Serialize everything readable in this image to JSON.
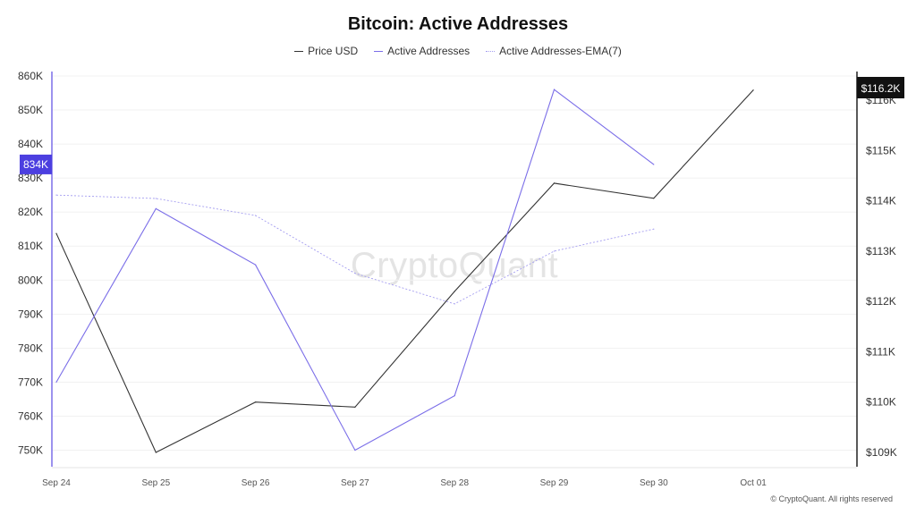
{
  "title": "Bitcoin: Active Addresses",
  "legend": [
    {
      "name": "Price USD",
      "color": "#333333",
      "style": "solid"
    },
    {
      "name": "Active Addresses",
      "color": "#7b6ee8",
      "style": "solid"
    },
    {
      "name": "Active Addresses-EMA(7)",
      "color": "#a59ef0",
      "style": "dotted"
    }
  ],
  "watermark": "CryptoQuant",
  "footer": "© CryptoQuant. All rights reserved",
  "chart_data": {
    "type": "line",
    "title": "Bitcoin: Active Addresses",
    "categories": [
      "Sep 24",
      "Sep 25",
      "Sep 26",
      "Sep 27",
      "Sep 28",
      "Sep 29",
      "Sep 30",
      "Oct 01"
    ],
    "y_left": {
      "ticks": [
        "860K",
        "850K",
        "840K",
        "830K",
        "820K",
        "810K",
        "800K",
        "790K",
        "780K",
        "770K",
        "760K",
        "750K"
      ],
      "ylim": [
        748000,
        860000
      ],
      "current_label": "834K",
      "current_value": 834000,
      "current_color": "#4c3fe0"
    },
    "y_right": {
      "ticks": [
        "$116K",
        "$115K",
        "$114K",
        "$113K",
        "$112K",
        "$111K",
        "$110K",
        "$109K"
      ],
      "ylim": [
        108980,
        116450
      ],
      "current_label": "$116.2K",
      "current_value": 116200
    },
    "series": [
      {
        "name": "Price USD",
        "axis": "right",
        "color": "#333333",
        "dash": "",
        "values": [
          113350,
          109000,
          110000,
          109900,
          112200,
          114350,
          114050,
          116200
        ]
      },
      {
        "name": "Active Addresses",
        "axis": "left",
        "color": "#7b6ee8",
        "dash": "",
        "values": [
          770000,
          821000,
          804500,
          750000,
          766000,
          856000,
          834000,
          null
        ]
      },
      {
        "name": "Active Addresses-EMA(7)",
        "axis": "left",
        "color": "#a59ef0",
        "dash": "2,2",
        "values": [
          825000,
          824000,
          819000,
          802000,
          793000,
          808500,
          815000,
          null
        ]
      }
    ],
    "grid": true,
    "legend_position": "top-center"
  }
}
